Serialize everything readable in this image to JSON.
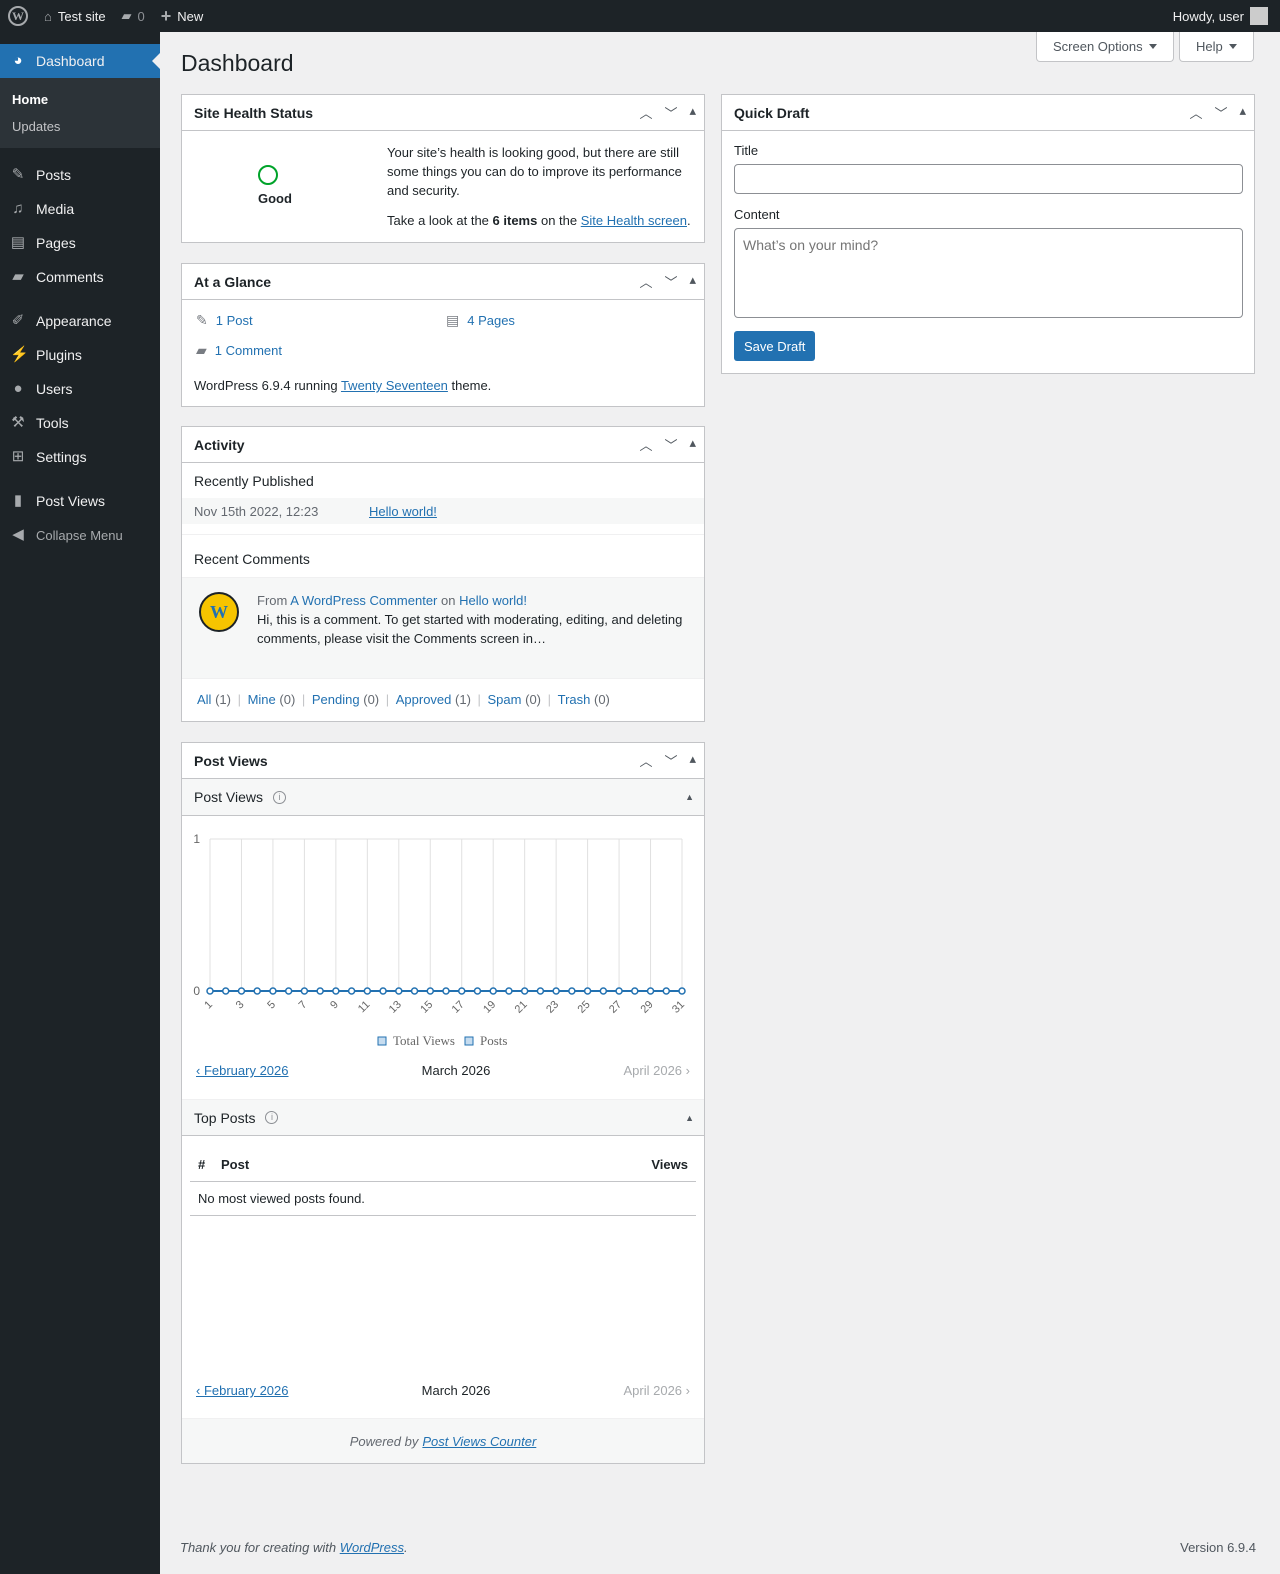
{
  "adminbar": {
    "site": "Test site",
    "comments": "0",
    "new": "New",
    "howdy": "Howdy, user"
  },
  "sidebar": {
    "dashboard": "Dashboard",
    "home": "Home",
    "updates": "Updates",
    "items": [
      "Posts",
      "Media",
      "Pages",
      "Comments",
      "Appearance",
      "Plugins",
      "Users",
      "Tools",
      "Settings",
      "Post Views"
    ],
    "collapse": "Collapse Menu"
  },
  "page": {
    "title": "Dashboard",
    "screen_options": "Screen Options",
    "help": "Help"
  },
  "site_health": {
    "title": "Site Health Status",
    "status": "Good",
    "text": "Your site’s health is looking good, but there are still some things you can do to improve its performance and security.",
    "take_look": "Take a look at the",
    "items": "6 items",
    "on_the": "on the",
    "link": "Site Health screen",
    "end": "."
  },
  "glance": {
    "title": "At a Glance",
    "post": "1 Post",
    "pages": "4 Pages",
    "comment": "1 Comment",
    "running": "WordPress 6.9.4 running",
    "theme": "Twenty Seventeen",
    "theme_suffix": "theme."
  },
  "activity": {
    "title": "Activity",
    "recently_published": "Recently Published",
    "date": "Nov 15th 2022, 12:23",
    "post": "Hello world!",
    "recent_comments": "Recent Comments",
    "from": "From",
    "author": "A WordPress Commenter",
    "on": "on",
    "comment_post": "Hello world!",
    "comment": "Hi, this is a comment. To get started with moderating, editing, and deleting comments, please visit the Comments screen in…",
    "filters": [
      {
        "label": "All",
        "count": "(1)"
      },
      {
        "label": "Mine",
        "count": "(0)"
      },
      {
        "label": "Pending",
        "count": "(0)"
      },
      {
        "label": "Approved",
        "count": "(1)"
      },
      {
        "label": "Spam",
        "count": "(0)"
      },
      {
        "label": "Trash",
        "count": "(0)"
      }
    ]
  },
  "post_views": {
    "title": "Post Views",
    "sub_title": "Post Views",
    "prev": "‹ February 2026",
    "current": "March 2026",
    "next": "April 2026 ›",
    "top_posts": "Top Posts",
    "col_num": "#",
    "col_post": "Post",
    "col_views": "Views",
    "empty": "No most viewed posts found.",
    "powered": "Powered by",
    "powered_link": "Post Views Counter"
  },
  "chart_data": {
    "type": "line",
    "x": [
      1,
      2,
      3,
      4,
      5,
      6,
      7,
      8,
      9,
      10,
      11,
      12,
      13,
      14,
      15,
      16,
      17,
      18,
      19,
      20,
      21,
      22,
      23,
      24,
      25,
      26,
      27,
      28,
      29,
      30,
      31
    ],
    "tick_labels": [
      "1",
      "3",
      "5",
      "7",
      "9",
      "11",
      "13",
      "15",
      "17",
      "19",
      "21",
      "23",
      "25",
      "27",
      "29",
      "31"
    ],
    "series": [
      {
        "name": "Total Views",
        "values": [
          0,
          0,
          0,
          0,
          0,
          0,
          0,
          0,
          0,
          0,
          0,
          0,
          0,
          0,
          0,
          0,
          0,
          0,
          0,
          0,
          0,
          0,
          0,
          0,
          0,
          0,
          0,
          0,
          0,
          0,
          0
        ]
      }
    ],
    "legend": [
      "Total Views",
      "Posts"
    ],
    "ylim": [
      0,
      1
    ],
    "yticks": [
      "0",
      "1"
    ],
    "color": "#2271b1",
    "grid": true,
    "legend_position": "bottom"
  },
  "quick_draft": {
    "title": "Quick Draft",
    "title_label": "Title",
    "title_value": "",
    "content_label": "Content",
    "content_placeholder": "What’s on your mind?",
    "save": "Save Draft"
  },
  "footer": {
    "thanks": "Thank you for creating with",
    "wp": "WordPress",
    "version": "Version 6.9.4"
  }
}
